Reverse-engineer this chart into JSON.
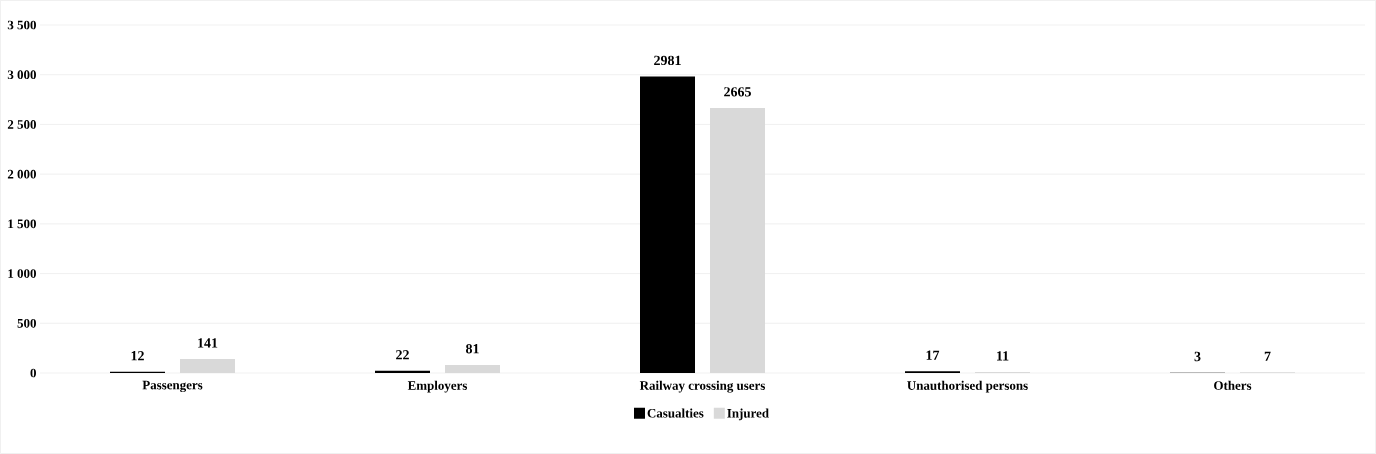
{
  "chart_data": {
    "type": "bar",
    "categories": [
      "Passengers",
      "Employers",
      "Railway crossing users",
      "Unauthorised persons",
      "Others"
    ],
    "series": [
      {
        "name": "Casualties",
        "color": "#000000",
        "values": [
          12,
          22,
          2981,
          17,
          3
        ]
      },
      {
        "name": "Injured",
        "color": "#d9d9d9",
        "values": [
          141,
          81,
          2665,
          11,
          7
        ]
      }
    ],
    "ylim": [
      0,
      3500
    ],
    "yticks": [
      0,
      500,
      {
        "value": 1000,
        "label": "1 000"
      },
      {
        "value": 1500,
        "label": "1 500"
      },
      {
        "value": 2000,
        "label": "2 000"
      },
      {
        "value": 2500,
        "label": "2 500"
      },
      {
        "value": 3000,
        "label": "3 000"
      },
      {
        "value": 3500,
        "label": "3 500"
      }
    ],
    "grid": "y",
    "legend": "bottom",
    "data_labels": true
  }
}
